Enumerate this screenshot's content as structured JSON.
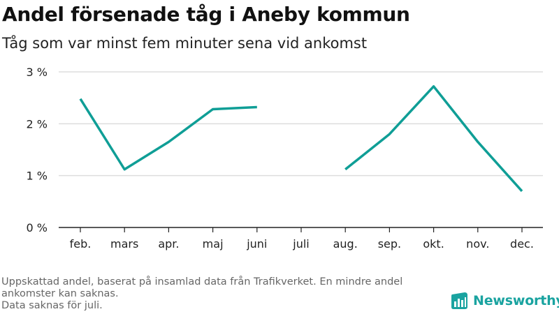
{
  "title": "Andel försenade tåg i Aneby kommun",
  "subtitle": "Tåg som var minst fem minuter sena vid ankomst",
  "footnote": {
    "line1": "Uppskattad andel, baserat på insamlad data från Trafikverket. En mindre andel ankomster kan saknas.",
    "line2": "Data saknas för juli."
  },
  "brand": {
    "name": "Newsworthy",
    "icon": "newsworthy-logo-icon"
  },
  "colors": {
    "line": "#0f9e96",
    "grid": "#dddddd",
    "axis": "#222222",
    "brand": "#1aa3a0"
  },
  "chart_data": {
    "type": "line",
    "categories": [
      "feb.",
      "mars",
      "apr.",
      "maj",
      "juni",
      "juli",
      "aug.",
      "sep.",
      "okt.",
      "nov.",
      "dec."
    ],
    "series": [
      {
        "values": [
          2.48,
          1.12,
          1.65,
          2.28,
          2.32,
          null,
          1.12,
          1.8,
          2.72,
          1.65,
          0.7
        ]
      }
    ],
    "ylim": [
      0,
      3
    ],
    "yticks": [
      0,
      1,
      2,
      3
    ],
    "ytick_labels": [
      "0 %",
      "1 %",
      "2 %",
      "3 %"
    ],
    "grid": true,
    "legend": "none"
  }
}
